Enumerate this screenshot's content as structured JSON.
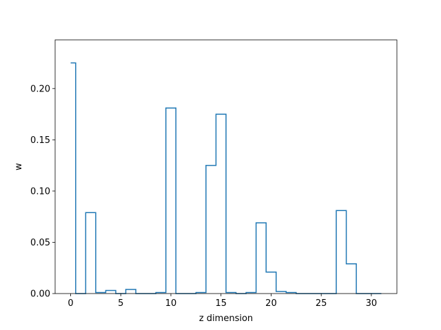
{
  "chart_data": {
    "type": "line",
    "drawstyle": "steps-mid",
    "title": "",
    "xlabel": "z dimension",
    "ylabel": "w",
    "xlim": [
      -1.55,
      32.55
    ],
    "ylim": [
      0,
      0.2475
    ],
    "xticks": [
      0,
      5,
      10,
      15,
      20,
      25,
      30
    ],
    "xtick_labels": [
      "0",
      "5",
      "10",
      "15",
      "20",
      "25",
      "30"
    ],
    "yticks": [
      0,
      0.05,
      0.1,
      0.15,
      0.2
    ],
    "ytick_labels": [
      "0.00",
      "0.05",
      "0.10",
      "0.15",
      "0.20"
    ],
    "grid": false,
    "legend": "none",
    "line_color": "#1f77b4",
    "x": [
      0,
      1,
      2,
      3,
      4,
      5,
      6,
      7,
      8,
      9,
      10,
      11,
      12,
      13,
      14,
      15,
      16,
      17,
      18,
      19,
      20,
      21,
      22,
      23,
      24,
      25,
      26,
      27,
      28,
      29,
      30,
      31
    ],
    "series": [
      {
        "values": [
          0.225,
          0.0,
          0.079,
          0.001,
          0.003,
          0.0,
          0.004,
          0.0,
          0.0,
          0.001,
          0.181,
          0.0,
          0.0,
          0.001,
          0.125,
          0.175,
          0.001,
          0.0,
          0.001,
          0.069,
          0.021,
          0.002,
          0.001,
          0.0,
          0.0,
          0.0,
          0.0,
          0.081,
          0.029,
          0.0,
          0.0,
          0.0
        ]
      }
    ]
  }
}
